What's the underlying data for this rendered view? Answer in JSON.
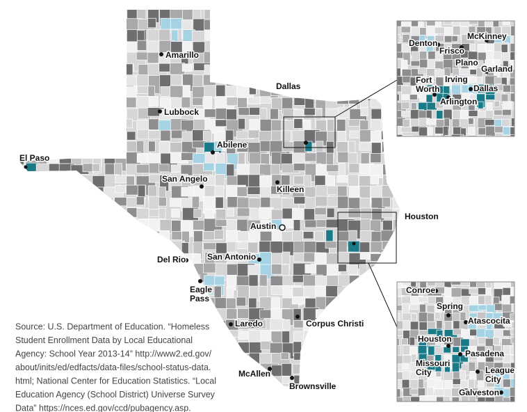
{
  "main_map": {
    "cities": [
      [
        "Amarillo"
      ],
      [
        "Lubbock"
      ],
      [
        "Dallas"
      ],
      [
        "Abilene"
      ],
      [
        "El Paso"
      ],
      [
        "San Angelo"
      ],
      [
        "Killeen"
      ],
      [
        "Austin"
      ],
      [
        "Houston"
      ],
      [
        "San Antonio"
      ],
      [
        "Del Rio"
      ],
      [
        "Eagle",
        "Pass"
      ],
      [
        "Laredo"
      ],
      [
        "Corpus Christi"
      ],
      [
        "McAllen"
      ],
      [
        "Brownsville"
      ]
    ]
  },
  "dallas_inset": {
    "cities": [
      [
        "Denton"
      ],
      [
        "Frisco"
      ],
      [
        "McKinney"
      ],
      [
        "Plano"
      ],
      [
        "Garland"
      ],
      [
        "Fort",
        "Worth"
      ],
      [
        "Irving"
      ],
      [
        "Dallas"
      ],
      [
        "Arlington"
      ]
    ]
  },
  "houston_inset": {
    "cities": [
      [
        "Conroe"
      ],
      [
        "Spring"
      ],
      [
        "Atascocita"
      ],
      [
        "Houston"
      ],
      [
        "Pasadena"
      ],
      [
        "Missouri",
        "City"
      ],
      [
        "League",
        "City"
      ],
      [
        "Galveston"
      ]
    ]
  },
  "source": [
    "Source: U.S. Department of Education. “Homeless",
    "Student Enrollment Data by Local Educational",
    "Agency: School Year 2013-14” http://www2.ed.gov/",
    "about/inits/ed/edfacts/data-files/school-status-data.",
    "html; National Center for Education Statistics. “Local",
    "Education Agency (School District) Universe Survey",
    "Data” https://nces.ed.gov/ccd/pubagency.asp."
  ]
}
